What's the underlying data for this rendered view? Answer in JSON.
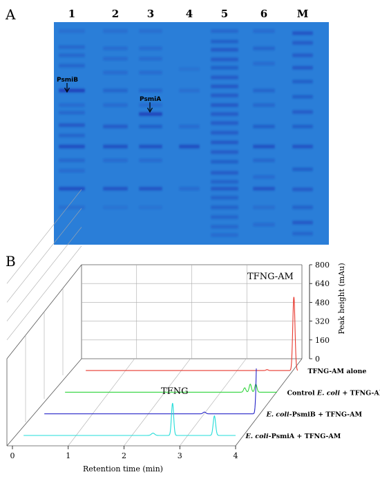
{
  "panel_a": {
    "letter": "A",
    "lanes": [
      "1",
      "2",
      "3",
      "4",
      "5",
      "6",
      "M"
    ],
    "annotations": [
      "PsmiB",
      "PsmiA"
    ],
    "colors": {
      "gel_background": "#2a7ed8",
      "band": "#1c3fb8"
    }
  },
  "panel_b": {
    "letter": "B",
    "peak_labels": {
      "product": "TFNG",
      "substrate": "TFNG-AM"
    },
    "chart_data": {
      "type": "line",
      "xlabel": "Retention time (min)",
      "ylabel": "Peak height (mAu)",
      "x_ticks": [
        "0",
        "1",
        "2",
        "3",
        "4"
      ],
      "y_ticks": [
        "0",
        "160",
        "320",
        "480",
        "640",
        "800"
      ],
      "xlim": [
        0,
        4
      ],
      "ylim": [
        0,
        800
      ],
      "series": [
        {
          "label_pre": "",
          "label_it": "",
          "label_post": "TFNG-AM alone",
          "color": "#e8372d",
          "peaks": [
            {
              "x": 3.45,
              "h": 8,
              "w": 0.02
            },
            {
              "x": 3.93,
              "h": 640,
              "w": 0.02
            }
          ]
        },
        {
          "label_pre": "Control ",
          "label_it": "E. coli",
          "label_post": " + TFNG-AM",
          "color": "#2fd43b",
          "peaks": [
            {
              "x": 3.42,
              "h": 38,
              "w": 0.02
            },
            {
              "x": 3.52,
              "h": 70,
              "w": 0.02
            },
            {
              "x": 3.62,
              "h": 70,
              "w": 0.02
            },
            {
              "x": 4.13,
              "h": 560,
              "w": 0.02
            }
          ]
        },
        {
          "label_pre": "",
          "label_it": "E. coli",
          "label_post": "-PsmiB + TFNG-AM",
          "color": "#2524c8",
          "peaks": [
            {
              "x": 3.07,
              "h": 15,
              "w": 0.025
            },
            {
              "x": 4.02,
              "h": 650,
              "w": 0.02
            }
          ]
        },
        {
          "label_pre": "",
          "label_it": "E. coli",
          "label_post": "-PsmiA + TFNG-AM",
          "color": "#20dcd8",
          "peaks": [
            {
              "x": 2.52,
              "h": 20,
              "w": 0.03
            },
            {
              "x": 2.87,
              "h": 280,
              "w": 0.02
            },
            {
              "x": 3.62,
              "h": 170,
              "w": 0.022
            }
          ]
        }
      ]
    }
  }
}
